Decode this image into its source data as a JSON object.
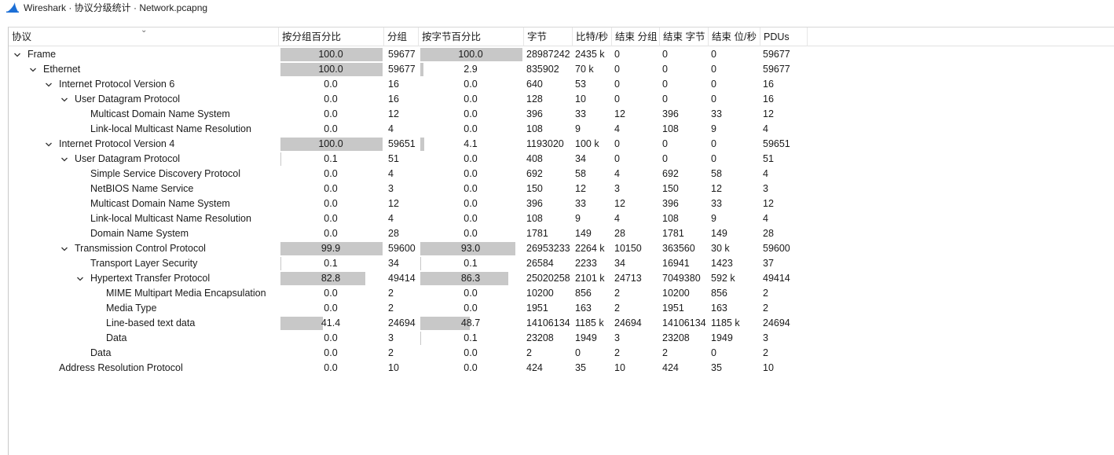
{
  "window": {
    "title": "Wireshark · 协议分级统计 · Network.pcapng",
    "app_icon": "wireshark-fin-icon"
  },
  "columns": [
    "协议",
    "按分组百分比",
    "分组",
    "按字节百分比",
    "字节",
    "比特/秒",
    "结束 分组",
    "结束 字节",
    "结束 位/秒",
    "PDUs"
  ],
  "rows": [
    {
      "depth": 0,
      "expander": "expanded",
      "name": "Frame",
      "pkt_pct": "100.0",
      "pkt_pct_value": 100.0,
      "pkts": "59677",
      "byte_pct": "100.0",
      "byte_pct_value": 100.0,
      "bytes": "28987242",
      "bitrate": "2435 k",
      "end_pkts": "0",
      "end_bytes": "0",
      "end_bitrate": "0",
      "pdus": "59677"
    },
    {
      "depth": 1,
      "expander": "expanded",
      "name": "Ethernet",
      "pkt_pct": "100.0",
      "pkt_pct_value": 100.0,
      "pkts": "59677",
      "byte_pct": "2.9",
      "byte_pct_value": 2.9,
      "bytes": "835902",
      "bitrate": "70 k",
      "end_pkts": "0",
      "end_bytes": "0",
      "end_bitrate": "0",
      "pdus": "59677"
    },
    {
      "depth": 2,
      "expander": "expanded",
      "name": "Internet Protocol Version 6",
      "pkt_pct": "0.0",
      "pkt_pct_value": 0.0,
      "pkts": "16",
      "byte_pct": "0.0",
      "byte_pct_value": 0.0,
      "bytes": "640",
      "bitrate": "53",
      "end_pkts": "0",
      "end_bytes": "0",
      "end_bitrate": "0",
      "pdus": "16"
    },
    {
      "depth": 3,
      "expander": "expanded",
      "name": "User Datagram Protocol",
      "pkt_pct": "0.0",
      "pkt_pct_value": 0.0,
      "pkts": "16",
      "byte_pct": "0.0",
      "byte_pct_value": 0.0,
      "bytes": "128",
      "bitrate": "10",
      "end_pkts": "0",
      "end_bytes": "0",
      "end_bitrate": "0",
      "pdus": "16"
    },
    {
      "depth": 4,
      "expander": "none",
      "name": "Multicast Domain Name System",
      "pkt_pct": "0.0",
      "pkt_pct_value": 0.0,
      "pkts": "12",
      "byte_pct": "0.0",
      "byte_pct_value": 0.0,
      "bytes": "396",
      "bitrate": "33",
      "end_pkts": "12",
      "end_bytes": "396",
      "end_bitrate": "33",
      "pdus": "12"
    },
    {
      "depth": 4,
      "expander": "none",
      "name": "Link-local Multicast Name Resolution",
      "pkt_pct": "0.0",
      "pkt_pct_value": 0.0,
      "pkts": "4",
      "byte_pct": "0.0",
      "byte_pct_value": 0.0,
      "bytes": "108",
      "bitrate": "9",
      "end_pkts": "4",
      "end_bytes": "108",
      "end_bitrate": "9",
      "pdus": "4"
    },
    {
      "depth": 2,
      "expander": "expanded",
      "name": "Internet Protocol Version 4",
      "pkt_pct": "100.0",
      "pkt_pct_value": 100.0,
      "pkts": "59651",
      "byte_pct": "4.1",
      "byte_pct_value": 4.1,
      "bytes": "1193020",
      "bitrate": "100 k",
      "end_pkts": "0",
      "end_bytes": "0",
      "end_bitrate": "0",
      "pdus": "59651"
    },
    {
      "depth": 3,
      "expander": "expanded",
      "name": "User Datagram Protocol",
      "pkt_pct": "0.1",
      "pkt_pct_value": 0.1,
      "pkts": "51",
      "byte_pct": "0.0",
      "byte_pct_value": 0.0,
      "bytes": "408",
      "bitrate": "34",
      "end_pkts": "0",
      "end_bytes": "0",
      "end_bitrate": "0",
      "pdus": "51"
    },
    {
      "depth": 4,
      "expander": "none",
      "name": "Simple Service Discovery Protocol",
      "pkt_pct": "0.0",
      "pkt_pct_value": 0.0,
      "pkts": "4",
      "byte_pct": "0.0",
      "byte_pct_value": 0.0,
      "bytes": "692",
      "bitrate": "58",
      "end_pkts": "4",
      "end_bytes": "692",
      "end_bitrate": "58",
      "pdus": "4"
    },
    {
      "depth": 4,
      "expander": "none",
      "name": "NetBIOS Name Service",
      "pkt_pct": "0.0",
      "pkt_pct_value": 0.0,
      "pkts": "3",
      "byte_pct": "0.0",
      "byte_pct_value": 0.0,
      "bytes": "150",
      "bitrate": "12",
      "end_pkts": "3",
      "end_bytes": "150",
      "end_bitrate": "12",
      "pdus": "3"
    },
    {
      "depth": 4,
      "expander": "none",
      "name": "Multicast Domain Name System",
      "pkt_pct": "0.0",
      "pkt_pct_value": 0.0,
      "pkts": "12",
      "byte_pct": "0.0",
      "byte_pct_value": 0.0,
      "bytes": "396",
      "bitrate": "33",
      "end_pkts": "12",
      "end_bytes": "396",
      "end_bitrate": "33",
      "pdus": "12"
    },
    {
      "depth": 4,
      "expander": "none",
      "name": "Link-local Multicast Name Resolution",
      "pkt_pct": "0.0",
      "pkt_pct_value": 0.0,
      "pkts": "4",
      "byte_pct": "0.0",
      "byte_pct_value": 0.0,
      "bytes": "108",
      "bitrate": "9",
      "end_pkts": "4",
      "end_bytes": "108",
      "end_bitrate": "9",
      "pdus": "4"
    },
    {
      "depth": 4,
      "expander": "none",
      "name": "Domain Name System",
      "pkt_pct": "0.0",
      "pkt_pct_value": 0.0,
      "pkts": "28",
      "byte_pct": "0.0",
      "byte_pct_value": 0.0,
      "bytes": "1781",
      "bitrate": "149",
      "end_pkts": "28",
      "end_bytes": "1781",
      "end_bitrate": "149",
      "pdus": "28"
    },
    {
      "depth": 3,
      "expander": "expanded",
      "name": "Transmission Control Protocol",
      "pkt_pct": "99.9",
      "pkt_pct_value": 99.9,
      "pkts": "59600",
      "byte_pct": "93.0",
      "byte_pct_value": 93.0,
      "bytes": "26953233",
      "bitrate": "2264 k",
      "end_pkts": "10150",
      "end_bytes": "363560",
      "end_bitrate": "30 k",
      "pdus": "59600"
    },
    {
      "depth": 4,
      "expander": "none",
      "name": "Transport Layer Security",
      "pkt_pct": "0.1",
      "pkt_pct_value": 0.1,
      "pkts": "34",
      "byte_pct": "0.1",
      "byte_pct_value": 0.1,
      "bytes": "26584",
      "bitrate": "2233",
      "end_pkts": "34",
      "end_bytes": "16941",
      "end_bitrate": "1423",
      "pdus": "37"
    },
    {
      "depth": 4,
      "expander": "expanded",
      "name": "Hypertext Transfer Protocol",
      "pkt_pct": "82.8",
      "pkt_pct_value": 82.8,
      "pkts": "49414",
      "byte_pct": "86.3",
      "byte_pct_value": 86.3,
      "bytes": "25020258",
      "bitrate": "2101 k",
      "end_pkts": "24713",
      "end_bytes": "7049380",
      "end_bitrate": "592 k",
      "pdus": "49414"
    },
    {
      "depth": 5,
      "expander": "none",
      "name": "MIME Multipart Media Encapsulation",
      "pkt_pct": "0.0",
      "pkt_pct_value": 0.0,
      "pkts": "2",
      "byte_pct": "0.0",
      "byte_pct_value": 0.0,
      "bytes": "10200",
      "bitrate": "856",
      "end_pkts": "2",
      "end_bytes": "10200",
      "end_bitrate": "856",
      "pdus": "2"
    },
    {
      "depth": 5,
      "expander": "none",
      "name": "Media Type",
      "pkt_pct": "0.0",
      "pkt_pct_value": 0.0,
      "pkts": "2",
      "byte_pct": "0.0",
      "byte_pct_value": 0.0,
      "bytes": "1951",
      "bitrate": "163",
      "end_pkts": "2",
      "end_bytes": "1951",
      "end_bitrate": "163",
      "pdus": "2"
    },
    {
      "depth": 5,
      "expander": "none",
      "name": "Line-based text data",
      "pkt_pct": "41.4",
      "pkt_pct_value": 41.4,
      "pkts": "24694",
      "byte_pct": "48.7",
      "byte_pct_value": 48.7,
      "bytes": "14106134",
      "bitrate": "1185 k",
      "end_pkts": "24694",
      "end_bytes": "14106134",
      "end_bitrate": "1185 k",
      "pdus": "24694"
    },
    {
      "depth": 5,
      "expander": "none",
      "name": "Data",
      "pkt_pct": "0.0",
      "pkt_pct_value": 0.0,
      "pkts": "3",
      "byte_pct": "0.1",
      "byte_pct_value": 0.1,
      "bytes": "23208",
      "bitrate": "1949",
      "end_pkts": "3",
      "end_bytes": "23208",
      "end_bitrate": "1949",
      "pdus": "3"
    },
    {
      "depth": 4,
      "expander": "none",
      "name": "Data",
      "pkt_pct": "0.0",
      "pkt_pct_value": 0.0,
      "pkts": "2",
      "byte_pct": "0.0",
      "byte_pct_value": 0.0,
      "bytes": "2",
      "bitrate": "0",
      "end_pkts": "2",
      "end_bytes": "2",
      "end_bitrate": "0",
      "pdus": "2"
    },
    {
      "depth": 2,
      "expander": "none",
      "name": "Address Resolution Protocol",
      "pkt_pct": "0.0",
      "pkt_pct_value": 0.0,
      "pkts": "10",
      "byte_pct": "0.0",
      "byte_pct_value": 0.0,
      "bytes": "424",
      "bitrate": "35",
      "end_pkts": "10",
      "end_bytes": "424",
      "end_bitrate": "35",
      "pdus": "10"
    }
  ],
  "colors": {
    "bar": "#c8c8c8",
    "text": "#1a1a1a",
    "icon_blue": "#1c6fd6"
  }
}
